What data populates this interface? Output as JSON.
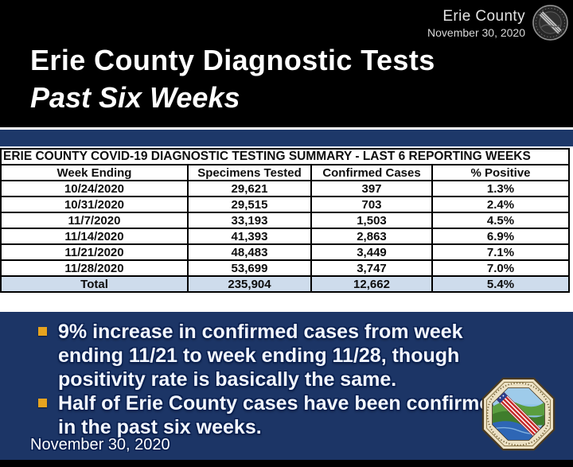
{
  "colors": {
    "navy_background": "#1c3566",
    "navy_bar": "#1d3869",
    "table_header_bg": "#cedcec",
    "bullet_gold": "#e7a41f",
    "slide_background": "#000000",
    "text_white": "#ffffff"
  },
  "header": {
    "brand": "Erie County",
    "date": "November 30, 2020",
    "seal_icon": "erie-county-seal-gray"
  },
  "title": {
    "line1": "Erie County Diagnostic Tests",
    "line2": "Past Six Weeks"
  },
  "table": {
    "title": "ERIE COUNTY COVID-19 DIAGNOSTIC TESTING SUMMARY - LAST 6 REPORTING WEEKS",
    "columns": [
      "Week Ending",
      "Specimens Tested",
      "Confirmed Cases",
      "% Positive"
    ],
    "rows": [
      [
        "10/24/2020",
        "29,621",
        "397",
        "1.3%"
      ],
      [
        "10/31/2020",
        "29,515",
        "703",
        "2.4%"
      ],
      [
        "11/7/2020",
        "33,193",
        "1,503",
        "4.5%"
      ],
      [
        "11/14/2020",
        "41,393",
        "2,863",
        "6.9%"
      ],
      [
        "11/21/2020",
        "48,483",
        "3,449",
        "7.1%"
      ],
      [
        "11/28/2020",
        "53,699",
        "3,747",
        "7.0%"
      ]
    ],
    "total": [
      "Total",
      "235,904",
      "12,662",
      "5.4%"
    ]
  },
  "bullets": [
    "9% increase in confirmed cases from week ending 11/21 to week ending 11/28, though positivity rate is basically the same.",
    "Half of Erie County cases have been confirmed in the past six weeks."
  ],
  "footer": {
    "date": "November 30, 2020",
    "seal_icon": "erie-county-seal-color"
  }
}
